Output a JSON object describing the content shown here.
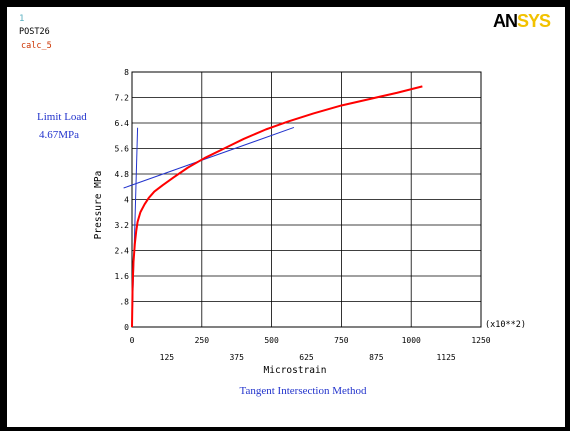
{
  "header": {
    "window_number": "1",
    "program": "POST26",
    "job_name": "calc_5",
    "logo": "ANSYS"
  },
  "colors": {
    "background": "#ffffff",
    "frame": "#000000",
    "grid": "#000000",
    "curve": "#ff0000",
    "tangent_lines": "#2233cc",
    "annotation_text": "#2233cc",
    "job_name_text": "#cc3300",
    "logo_dark": "#000000",
    "logo_accent": "#f2c200"
  },
  "chart_data": {
    "type": "line",
    "title": "Tangent Intersection Method",
    "xlabel": "Microstrain",
    "ylabel": "Pressure MPa",
    "x_multiplier": "(x10**2)",
    "xlim": [
      0,
      1250
    ],
    "ylim": [
      0,
      8
    ],
    "grid": true,
    "x_ticks_top": [
      "0",
      "250",
      "500",
      "750",
      "1000",
      "1250"
    ],
    "x_ticks_top_values": [
      0,
      250,
      500,
      750,
      1000,
      1250
    ],
    "x_ticks_bottom": [
      "125",
      "375",
      "625",
      "875",
      "1125"
    ],
    "x_ticks_bottom_values": [
      125,
      375,
      625,
      875,
      1125
    ],
    "y_ticks": [
      "0",
      ".8",
      "1.6",
      "2.4",
      "3.2",
      "4",
      "4.8",
      "5.6",
      "6.4",
      "7.2",
      "8"
    ],
    "y_ticks_values": [
      0,
      0.8,
      1.6,
      2.4,
      3.2,
      4,
      4.8,
      5.6,
      6.4,
      7.2,
      8
    ],
    "annotation": {
      "label_line1": "Limit Load",
      "label_line2": "4.67MPa",
      "value": 4.67
    },
    "series": [
      {
        "x": [
          0,
          2,
          5,
          10,
          15,
          20,
          30,
          45,
          60,
          80,
          110,
          150,
          200,
          260,
          330,
          400,
          480,
          560,
          650,
          750,
          850,
          950,
          1040
        ],
        "y": [
          0,
          1.2,
          2.0,
          2.6,
          3.0,
          3.3,
          3.6,
          3.85,
          4.05,
          4.25,
          4.45,
          4.7,
          5.0,
          5.3,
          5.6,
          5.9,
          6.2,
          6.45,
          6.7,
          6.95,
          7.15,
          7.35,
          7.55
        ]
      }
    ],
    "tangent_lines": [
      {
        "x": [
          0,
          20
        ],
        "y": [
          0,
          6.25
        ]
      },
      {
        "x": [
          -30,
          580
        ],
        "y": [
          4.36,
          6.26
        ]
      }
    ]
  }
}
